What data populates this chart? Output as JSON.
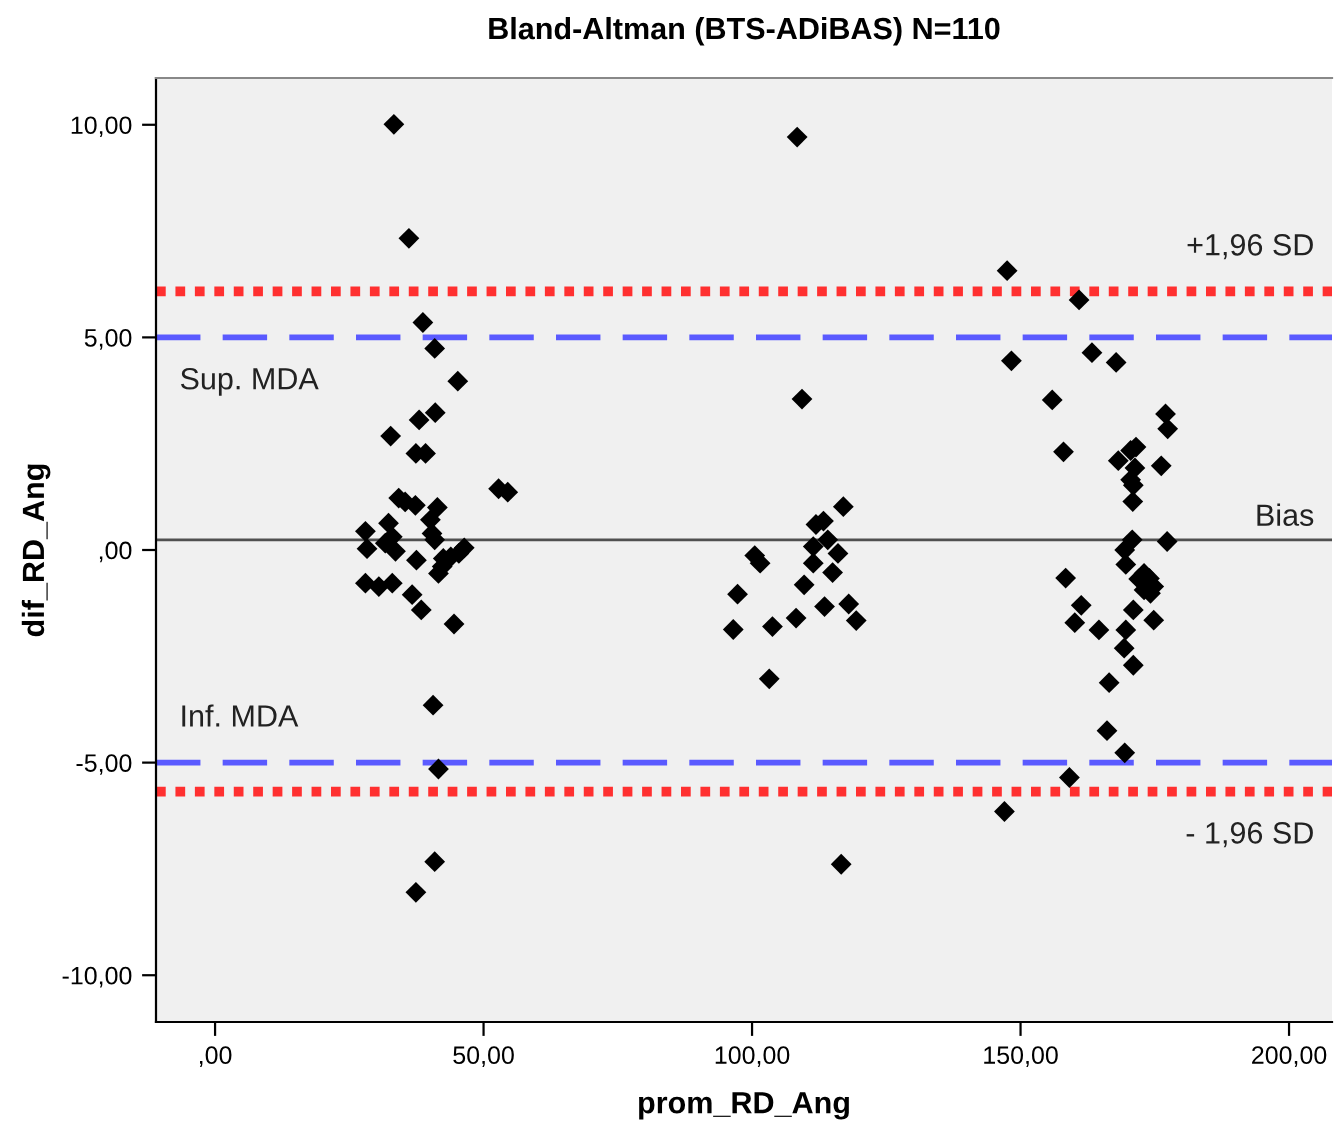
{
  "chart_data": {
    "type": "scatter",
    "title": "Bland-Altman (BTS-ADiBAS) N=110",
    "xlabel": "prom_RD_Ang",
    "ylabel": "dif_RD_Ang",
    "marker": "diamond",
    "grid": false,
    "xlim": [
      -11,
      208
    ],
    "ylim": [
      -11.1,
      11.1
    ],
    "xticks": [
      {
        "value": 0,
        "label": ",00"
      },
      {
        "value": 50,
        "label": "50,00"
      },
      {
        "value": 100,
        "label": "100,00"
      },
      {
        "value": 150,
        "label": "150,00"
      },
      {
        "value": 200,
        "label": "200,00"
      }
    ],
    "yticks": [
      {
        "value": -10,
        "label": "-10,00"
      },
      {
        "value": -5,
        "label": "-5,00"
      },
      {
        "value": 0,
        "label": ",00"
      },
      {
        "value": 5,
        "label": "5,00"
      },
      {
        "value": 10,
        "label": "10,00"
      }
    ],
    "series": [
      {
        "color": "#000000",
        "x": [
          33.3,
          36.1,
          38.7,
          40.9,
          45.2,
          41.0,
          38.0,
          32.7,
          37.4,
          39.2,
          52.8,
          54.5,
          34.2,
          35.4,
          37.3,
          41.4,
          40.1,
          32.3,
          28.0,
          40.4,
          33.0,
          40.9,
          31.7,
          28.3,
          33.6,
          46.4,
          45.4,
          43.9,
          42.5,
          37.5,
          42.3,
          41.6,
          28.0,
          30.5,
          33.0,
          36.7,
          38.4,
          44.5,
          40.6,
          41.6,
          40.9,
          37.4,
          108.4,
          109.3,
          117.0,
          113.3,
          111.9,
          114.1,
          111.4,
          116.0,
          100.5,
          101.5,
          111.4,
          115.0,
          109.7,
          97.3,
          113.5,
          118.0,
          108.2,
          119.4,
          96.5,
          103.8,
          103.2,
          116.6,
          147.5,
          160.9,
          148.3,
          163.3,
          167.8,
          155.9,
          177.0,
          177.4,
          158.0,
          171.5,
          170.5,
          168.2,
          171.3,
          176.2,
          170.5,
          171.0,
          170.9,
          177.3,
          170.8,
          169.4,
          169.6,
          158.4,
          173.0,
          174.0,
          172.0,
          174.8,
          173.0,
          174.2,
          161.3,
          171.0,
          160.1,
          174.8,
          164.6,
          169.6,
          169.3,
          171.0,
          166.5,
          166.1,
          169.4,
          159.1,
          147.0
        ],
        "values": [
          10.01,
          7.33,
          5.35,
          4.74,
          3.97,
          3.23,
          3.06,
          2.68,
          2.27,
          2.27,
          1.44,
          1.36,
          1.22,
          1.13,
          1.05,
          1.0,
          0.71,
          0.63,
          0.44,
          0.39,
          0.31,
          0.24,
          0.16,
          0.03,
          -0.03,
          0.05,
          -0.08,
          -0.16,
          -0.2,
          -0.24,
          -0.39,
          -0.55,
          -0.78,
          -0.86,
          -0.78,
          -1.05,
          -1.41,
          -1.74,
          -3.65,
          -5.15,
          -7.33,
          -8.05,
          9.71,
          3.55,
          1.02,
          0.68,
          0.6,
          0.24,
          0.08,
          -0.08,
          -0.13,
          -0.31,
          -0.31,
          -0.53,
          -0.82,
          -1.04,
          -1.33,
          -1.27,
          -1.6,
          -1.66,
          -1.87,
          -1.8,
          -3.03,
          -7.39,
          6.57,
          5.88,
          4.45,
          4.64,
          4.41,
          3.53,
          3.2,
          2.85,
          2.31,
          2.42,
          2.34,
          2.1,
          1.93,
          1.98,
          1.65,
          1.52,
          1.14,
          0.2,
          0.24,
          0.0,
          -0.34,
          -0.66,
          -0.55,
          -0.67,
          -0.68,
          -0.86,
          -0.94,
          -1.02,
          -1.3,
          -1.41,
          -1.71,
          -1.65,
          -1.88,
          -1.88,
          -2.31,
          -2.71,
          -3.12,
          -4.25,
          -4.77,
          -5.35,
          -6.15
        ]
      }
    ],
    "ref_lines": [
      {
        "axis": "y",
        "value": 6.08,
        "color": "#ff3030",
        "line_style": "dotted",
        "label": "+1,96 SD"
      },
      {
        "axis": "y",
        "value": 5.0,
        "color": "#5a5aff",
        "line_style": "dashed",
        "label": "Sup. MDA"
      },
      {
        "axis": "y",
        "value": 0.24,
        "color": "#505050",
        "line_style": "solid",
        "label": "Bias"
      },
      {
        "axis": "y",
        "value": -5.0,
        "color": "#5a5aff",
        "line_style": "dashed",
        "label": "Inf. MDA"
      },
      {
        "axis": "y",
        "value": -5.68,
        "color": "#ff3030",
        "line_style": "dotted",
        "label": "- 1,96 SD"
      }
    ]
  }
}
